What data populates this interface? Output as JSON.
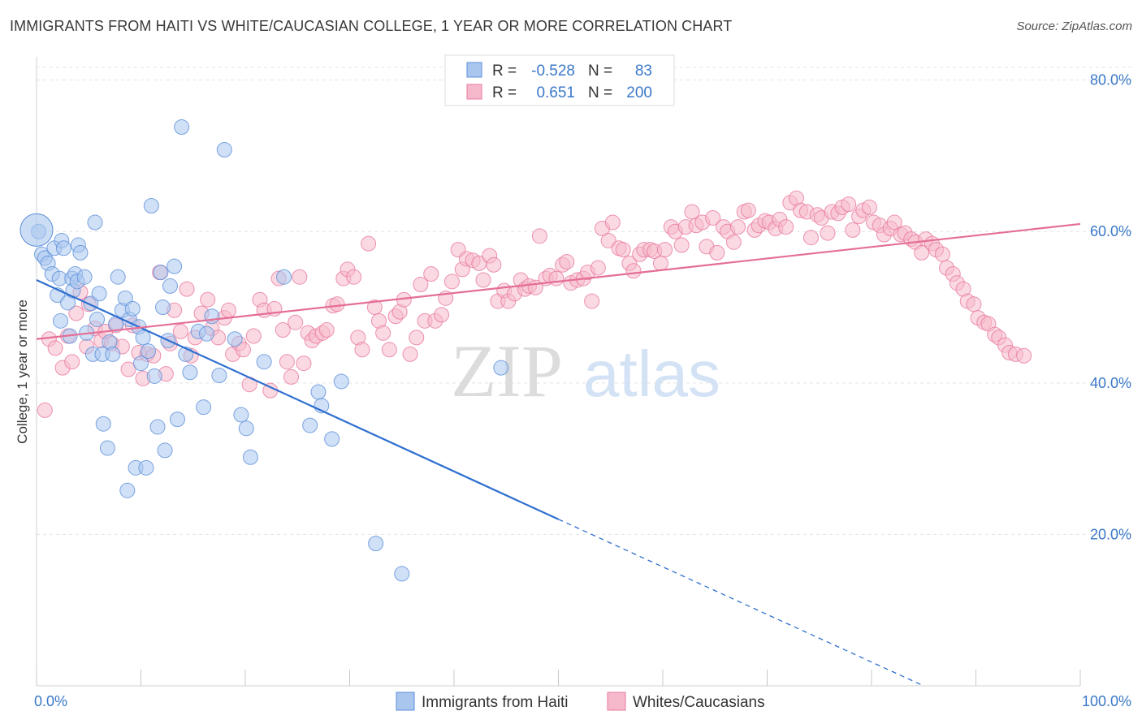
{
  "title": "IMMIGRANTS FROM HAITI VS WHITE/CAUCASIAN COLLEGE, 1 YEAR OR MORE CORRELATION CHART",
  "source": "Source: ZipAtlas.com",
  "watermark": {
    "zip": "ZIP",
    "atlas": "atlas"
  },
  "legend": {
    "rows": [
      {
        "r_label": "R =",
        "r_value": "-0.528",
        "n_label": "N =",
        "n_value": "83",
        "color": "#a9c6ee"
      },
      {
        "r_label": "R =",
        "r_value": "0.651",
        "n_label": "N =",
        "n_value": "200",
        "color": "#f6b9cb"
      }
    ]
  },
  "chart_data": {
    "type": "scatter",
    "title": "IMMIGRANTS FROM HAITI VS WHITE/CAUCASIAN COLLEGE, 1 YEAR OR MORE CORRELATION CHART",
    "xlabel": "",
    "ylabel": "College, 1 year or more",
    "xlim": [
      0,
      100
    ],
    "ylim": [
      0,
      82
    ],
    "x_tick_labels": [
      "0.0%",
      "100.0%"
    ],
    "y_ticks": [
      20,
      40,
      60,
      80
    ],
    "y_tick_labels": [
      "20.0%",
      "40.0%",
      "60.0%",
      "80.0%"
    ],
    "grid": true,
    "legend_position": "top-center",
    "series": [
      {
        "name": "Immigrants from Haiti",
        "color": "#5b8fd9",
        "fill": "#a9c6ee",
        "points": [
          [
            0.2,
            60.0
          ],
          [
            0.5,
            57.0
          ],
          [
            0.8,
            56.5
          ],
          [
            1.1,
            55.8
          ],
          [
            1.5,
            54.4
          ],
          [
            1.7,
            57.8
          ],
          [
            2.0,
            51.6
          ],
          [
            2.2,
            53.8
          ],
          [
            2.3,
            48.2
          ],
          [
            2.4,
            58.8
          ],
          [
            2.6,
            57.8
          ],
          [
            3.0,
            50.6
          ],
          [
            3.2,
            46.2
          ],
          [
            3.4,
            53.8
          ],
          [
            3.5,
            52.2
          ],
          [
            3.7,
            54.4
          ],
          [
            3.9,
            53.4
          ],
          [
            4.0,
            58.2
          ],
          [
            4.2,
            57.2
          ],
          [
            4.6,
            54.0
          ],
          [
            4.8,
            46.6
          ],
          [
            5.2,
            50.5
          ],
          [
            5.4,
            43.8
          ],
          [
            5.6,
            61.2
          ],
          [
            5.8,
            48.4
          ],
          [
            6.0,
            51.8
          ],
          [
            6.3,
            43.8
          ],
          [
            6.4,
            34.6
          ],
          [
            6.8,
            31.4
          ],
          [
            7.0,
            45.4
          ],
          [
            7.3,
            43.8
          ],
          [
            7.6,
            47.8
          ],
          [
            7.8,
            54.0
          ],
          [
            8.2,
            49.6
          ],
          [
            8.5,
            51.2
          ],
          [
            8.7,
            25.8
          ],
          [
            8.9,
            48.4
          ],
          [
            9.2,
            49.8
          ],
          [
            9.5,
            28.8
          ],
          [
            9.8,
            47.4
          ],
          [
            10.0,
            42.6
          ],
          [
            10.2,
            46.0
          ],
          [
            10.5,
            28.8
          ],
          [
            10.7,
            44.2
          ],
          [
            11.0,
            63.4
          ],
          [
            11.3,
            40.9
          ],
          [
            11.6,
            34.2
          ],
          [
            11.9,
            54.6
          ],
          [
            12.1,
            50.0
          ],
          [
            12.3,
            31.1
          ],
          [
            12.6,
            45.6
          ],
          [
            12.8,
            52.8
          ],
          [
            13.2,
            55.4
          ],
          [
            13.5,
            35.2
          ],
          [
            13.9,
            73.8
          ],
          [
            14.3,
            43.8
          ],
          [
            14.7,
            41.4
          ],
          [
            15.5,
            46.8
          ],
          [
            16.0,
            36.8
          ],
          [
            16.3,
            46.5
          ],
          [
            16.8,
            48.8
          ],
          [
            17.5,
            41.0
          ],
          [
            18.0,
            70.8
          ],
          [
            19.0,
            45.8
          ],
          [
            19.6,
            35.8
          ],
          [
            20.1,
            34.0
          ],
          [
            20.5,
            30.2
          ],
          [
            21.8,
            42.8
          ],
          [
            23.7,
            54.0
          ],
          [
            27.0,
            38.8
          ],
          [
            27.3,
            37.0
          ],
          [
            26.2,
            34.4
          ],
          [
            28.3,
            32.6
          ],
          [
            29.2,
            40.2
          ],
          [
            32.5,
            18.8
          ],
          [
            35.0,
            14.8
          ],
          [
            44.5,
            42.0
          ]
        ]
      },
      {
        "name": "Whites/Caucasians",
        "color": "#e9789e",
        "fill": "#f6b9cb",
        "points": [
          [
            0.8,
            36.4
          ],
          [
            1.2,
            45.8
          ],
          [
            1.8,
            44.6
          ],
          [
            2.5,
            42.0
          ],
          [
            3.0,
            46.2
          ],
          [
            3.4,
            42.8
          ],
          [
            3.8,
            49.2
          ],
          [
            4.2,
            52.0
          ],
          [
            4.8,
            44.8
          ],
          [
            5.0,
            50.4
          ],
          [
            5.6,
            47.2
          ],
          [
            6.2,
            45.6
          ],
          [
            6.6,
            46.8
          ],
          [
            7.2,
            45.2
          ],
          [
            7.6,
            47.6
          ],
          [
            8.2,
            44.8
          ],
          [
            8.8,
            41.8
          ],
          [
            9.2,
            47.6
          ],
          [
            9.8,
            44.0
          ],
          [
            10.2,
            40.6
          ],
          [
            10.6,
            43.8
          ],
          [
            11.2,
            43.6
          ],
          [
            11.8,
            54.6
          ],
          [
            12.4,
            41.2
          ],
          [
            12.8,
            45.2
          ],
          [
            13.2,
            49.6
          ],
          [
            13.8,
            46.8
          ],
          [
            14.4,
            52.4
          ],
          [
            14.8,
            43.6
          ],
          [
            15.2,
            46.0
          ],
          [
            15.8,
            49.2
          ],
          [
            16.4,
            51.0
          ],
          [
            16.8,
            47.2
          ],
          [
            17.4,
            46.0
          ],
          [
            18.0,
            48.6
          ],
          [
            18.4,
            49.6
          ],
          [
            18.8,
            43.8
          ],
          [
            19.4,
            45.2
          ],
          [
            19.8,
            44.4
          ],
          [
            20.4,
            39.8
          ],
          [
            20.8,
            46.2
          ],
          [
            21.4,
            51.0
          ],
          [
            21.8,
            49.6
          ],
          [
            22.4,
            39.0
          ],
          [
            22.8,
            49.8
          ],
          [
            23.2,
            53.8
          ],
          [
            23.6,
            47.0
          ],
          [
            24.0,
            42.8
          ],
          [
            24.4,
            40.8
          ],
          [
            24.8,
            48.0
          ],
          [
            25.2,
            54.0
          ],
          [
            25.6,
            42.6
          ],
          [
            26.0,
            46.6
          ],
          [
            26.4,
            45.6
          ],
          [
            26.8,
            46.2
          ],
          [
            27.4,
            46.6
          ],
          [
            27.8,
            47.0
          ],
          [
            28.4,
            50.2
          ],
          [
            28.8,
            50.4
          ],
          [
            29.4,
            53.8
          ],
          [
            29.8,
            55.0
          ],
          [
            30.4,
            54.0
          ],
          [
            30.8,
            46.0
          ],
          [
            31.2,
            44.4
          ],
          [
            31.8,
            58.4
          ],
          [
            32.4,
            50.0
          ],
          [
            32.8,
            48.2
          ],
          [
            33.2,
            46.6
          ],
          [
            33.8,
            44.4
          ],
          [
            34.4,
            48.8
          ],
          [
            34.8,
            49.4
          ],
          [
            35.2,
            51.0
          ],
          [
            35.8,
            43.8
          ],
          [
            36.4,
            46.0
          ],
          [
            36.8,
            53.0
          ],
          [
            37.2,
            48.2
          ],
          [
            37.8,
            54.4
          ],
          [
            38.2,
            48.2
          ],
          [
            38.8,
            49.0
          ],
          [
            39.2,
            51.2
          ],
          [
            39.8,
            53.4
          ],
          [
            40.4,
            57.6
          ],
          [
            40.8,
            55.0
          ],
          [
            41.2,
            56.4
          ],
          [
            41.8,
            56.2
          ],
          [
            42.4,
            55.8
          ],
          [
            42.8,
            53.6
          ],
          [
            43.4,
            56.8
          ],
          [
            43.8,
            55.6
          ],
          [
            44.2,
            50.8
          ],
          [
            44.8,
            52.2
          ],
          [
            45.2,
            50.8
          ],
          [
            45.8,
            51.8
          ],
          [
            46.4,
            53.6
          ],
          [
            46.8,
            52.4
          ],
          [
            47.2,
            52.8
          ],
          [
            47.8,
            52.6
          ],
          [
            48.2,
            59.4
          ],
          [
            48.8,
            53.8
          ],
          [
            49.2,
            54.2
          ],
          [
            49.8,
            53.8
          ],
          [
            50.4,
            55.6
          ],
          [
            50.8,
            56.0
          ],
          [
            51.2,
            53.2
          ],
          [
            51.8,
            53.6
          ],
          [
            52.4,
            53.8
          ],
          [
            52.8,
            54.6
          ],
          [
            53.2,
            50.8
          ],
          [
            53.8,
            55.2
          ],
          [
            54.2,
            60.4
          ],
          [
            54.8,
            58.8
          ],
          [
            55.2,
            61.2
          ],
          [
            55.8,
            57.8
          ],
          [
            56.2,
            57.6
          ],
          [
            56.8,
            55.8
          ],
          [
            57.2,
            54.8
          ],
          [
            57.8,
            57.0
          ],
          [
            58.2,
            57.6
          ],
          [
            58.8,
            57.6
          ],
          [
            59.2,
            57.4
          ],
          [
            59.8,
            55.8
          ],
          [
            60.2,
            57.6
          ],
          [
            60.8,
            60.6
          ],
          [
            61.2,
            60.0
          ],
          [
            61.8,
            58.2
          ],
          [
            62.2,
            60.6
          ],
          [
            62.8,
            62.6
          ],
          [
            63.2,
            60.8
          ],
          [
            63.8,
            61.2
          ],
          [
            64.2,
            58.0
          ],
          [
            64.8,
            61.8
          ],
          [
            65.2,
            57.2
          ],
          [
            65.8,
            60.6
          ],
          [
            66.2,
            60.0
          ],
          [
            66.8,
            58.6
          ],
          [
            67.2,
            60.6
          ],
          [
            67.8,
            62.6
          ],
          [
            68.2,
            62.8
          ],
          [
            68.8,
            60.2
          ],
          [
            69.2,
            60.8
          ],
          [
            69.8,
            61.4
          ],
          [
            70.2,
            61.2
          ],
          [
            70.8,
            60.4
          ],
          [
            71.2,
            61.6
          ],
          [
            71.8,
            60.6
          ],
          [
            72.2,
            63.8
          ],
          [
            72.8,
            64.4
          ],
          [
            73.2,
            62.8
          ],
          [
            73.8,
            62.6
          ],
          [
            74.2,
            59.2
          ],
          [
            74.8,
            62.2
          ],
          [
            75.2,
            61.8
          ],
          [
            75.8,
            59.8
          ],
          [
            76.2,
            62.6
          ],
          [
            76.8,
            62.4
          ],
          [
            77.2,
            63.2
          ],
          [
            77.8,
            63.6
          ],
          [
            78.2,
            60.2
          ],
          [
            78.8,
            62.0
          ],
          [
            79.2,
            62.8
          ],
          [
            79.8,
            63.2
          ],
          [
            80.2,
            61.2
          ],
          [
            80.8,
            60.8
          ],
          [
            81.2,
            59.6
          ],
          [
            81.8,
            60.4
          ],
          [
            82.2,
            61.2
          ],
          [
            82.8,
            59.6
          ],
          [
            83.2,
            59.8
          ],
          [
            83.8,
            59.0
          ],
          [
            84.2,
            58.6
          ],
          [
            84.8,
            57.2
          ],
          [
            85.2,
            59.0
          ],
          [
            85.8,
            58.4
          ],
          [
            86.2,
            57.6
          ],
          [
            86.8,
            57.0
          ],
          [
            87.2,
            55.2
          ],
          [
            87.8,
            54.4
          ],
          [
            88.2,
            53.2
          ],
          [
            88.8,
            52.4
          ],
          [
            89.2,
            50.8
          ],
          [
            89.8,
            50.4
          ],
          [
            90.2,
            48.6
          ],
          [
            90.8,
            48.0
          ],
          [
            91.2,
            47.8
          ],
          [
            91.8,
            46.4
          ],
          [
            92.2,
            46.0
          ],
          [
            92.8,
            45.0
          ],
          [
            93.2,
            44.0
          ],
          [
            93.8,
            43.8
          ],
          [
            94.6,
            43.6
          ]
        ]
      }
    ],
    "trendlines": [
      {
        "series": "Immigrants from Haiti",
        "solid": [
          [
            0,
            53.6
          ],
          [
            50,
            22.0
          ]
        ],
        "dashed": [
          [
            50,
            22.0
          ],
          [
            85,
            0.0
          ]
        ]
      },
      {
        "series": "Whites/Caucasians",
        "solid": [
          [
            0,
            45.8
          ],
          [
            100,
            61.0
          ]
        ]
      }
    ],
    "bubble": {
      "series": "Immigrants from Haiti",
      "x": 0.0,
      "y": 60.2
    }
  }
}
